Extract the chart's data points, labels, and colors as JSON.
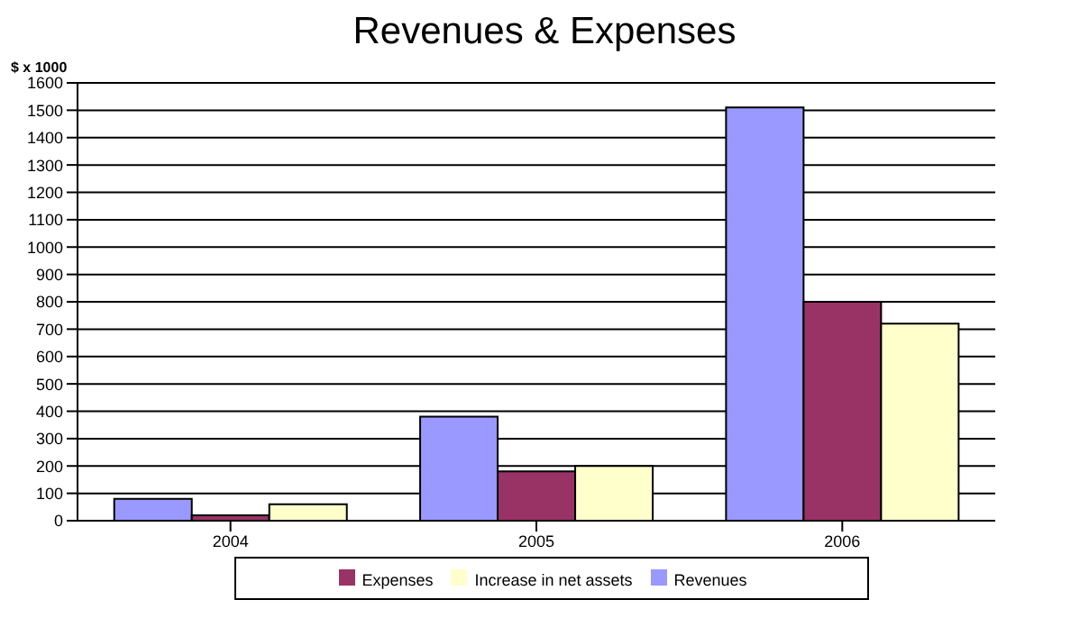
{
  "chart_data": {
    "type": "bar",
    "title": "Revenues & Expenses",
    "ylabel": "$ x 1000",
    "categories": [
      "2004",
      "2005",
      "2006"
    ],
    "series": [
      {
        "name": "Revenues",
        "color": "#9999ff",
        "values": [
          80,
          380,
          1510
        ]
      },
      {
        "name": "Expenses",
        "color": "#993366",
        "values": [
          20,
          180,
          800
        ]
      },
      {
        "name": "Increase in net assets",
        "color": "#ffffcc",
        "values": [
          60,
          200,
          720
        ]
      }
    ],
    "ylim": [
      0,
      1600
    ],
    "yticks": [
      0,
      100,
      200,
      300,
      400,
      500,
      600,
      700,
      800,
      900,
      1000,
      1100,
      1200,
      1300,
      1400,
      1500,
      1600
    ],
    "grid": "y",
    "legend": "bottom"
  }
}
